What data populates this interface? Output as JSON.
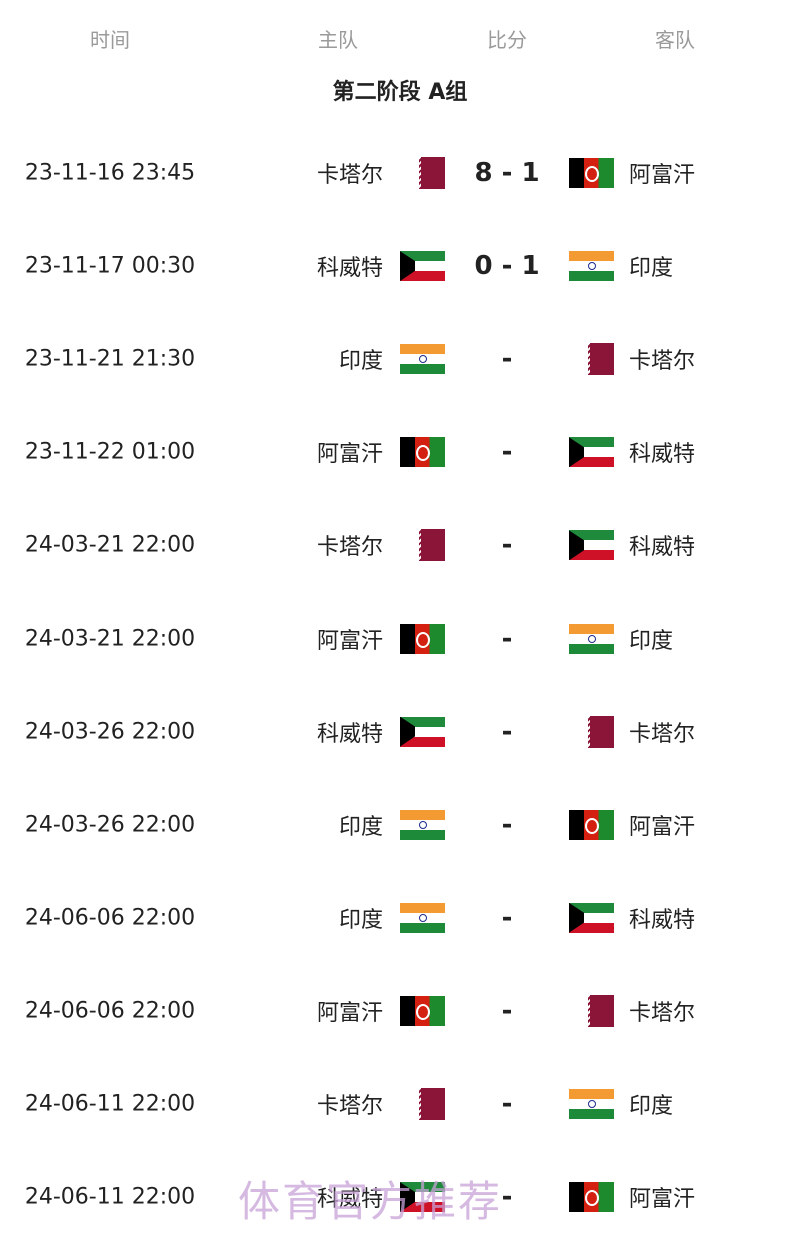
{
  "header": {
    "columns": [
      "时间",
      "主队",
      "比分",
      "客队"
    ],
    "group_title": "第二阶段 A组"
  },
  "matches": [
    {
      "time": "23-11-16 23:45",
      "home": "卡塔尔",
      "score": "8 - 1",
      "away": "阿富汗"
    },
    {
      "time": "23-11-17 00:30",
      "home": "科威特",
      "score": "0 - 1",
      "away": "印度"
    },
    {
      "time": "23-11-21 21:30",
      "home": "印度",
      "score": "-",
      "away": "卡塔尔"
    },
    {
      "time": "23-11-22 01:00",
      "home": "阿富汗",
      "score": "-",
      "away": "科威特"
    },
    {
      "time": "24-03-21 22:00",
      "home": "卡塔尔",
      "score": "-",
      "away": "科威特"
    },
    {
      "time": "24-03-21 22:00",
      "home": "阿富汗",
      "score": "-",
      "away": "印度"
    },
    {
      "time": "24-03-26 22:00",
      "home": "科威特",
      "score": "-",
      "away": "卡塔尔"
    },
    {
      "time": "24-03-26 22:00",
      "home": "印度",
      "score": "-",
      "away": "阿富汗"
    },
    {
      "time": "24-06-06 22:00",
      "home": "印度",
      "score": "-",
      "away": "科威特"
    },
    {
      "time": "24-06-06 22:00",
      "home": "阿富汗",
      "score": "-",
      "away": "卡塔尔"
    },
    {
      "time": "24-06-11 22:00",
      "home": "卡塔尔",
      "score": "-",
      "away": "印度"
    },
    {
      "time": "24-06-11 22:00",
      "home": "科威特",
      "score": "-",
      "away": "阿富汗"
    }
  ],
  "watermark": "体育官方推荐"
}
